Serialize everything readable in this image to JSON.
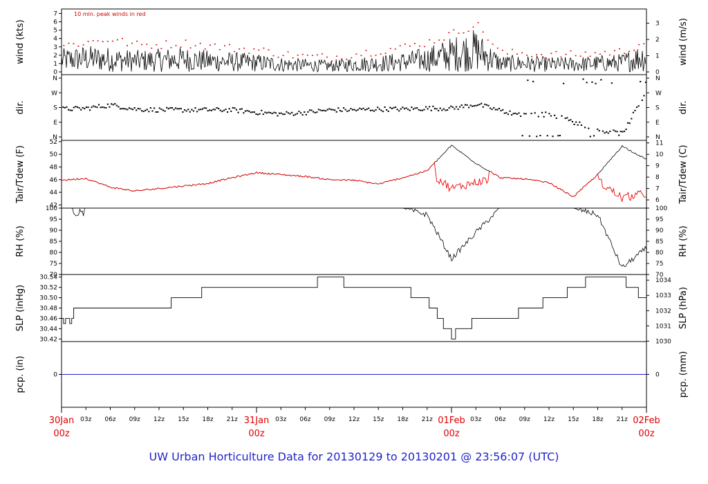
{
  "title": "UW Urban Horticulture Data for 20130129  to  20130201 @ 23:56:07  (UTC)",
  "note": "10 min. peak winds in red",
  "colors": {
    "axis": "#000000",
    "peak": "#dd0000",
    "dew": "#ee0000",
    "precip": "#2222cc",
    "day": "#e00000",
    "title": "#2222cc"
  },
  "x_axis": {
    "hour_ticks": [
      "03z",
      "06z",
      "09z",
      "12z",
      "15z",
      "18z",
      "21z",
      "03z",
      "06z",
      "09z",
      "12z",
      "15z",
      "18z",
      "21z",
      "03z",
      "06z",
      "09z",
      "12z",
      "15z",
      "18z",
      "21z"
    ],
    "day_labels": [
      {
        "day": "30Jan",
        "hour": "00z"
      },
      {
        "day": "31Jan",
        "hour": "00z"
      },
      {
        "day": "01Feb",
        "hour": "00z"
      },
      {
        "day": "02Feb",
        "hour": "00z"
      }
    ]
  },
  "chart_data": [
    {
      "type": "line",
      "panel": "wind",
      "ylabel": "wind (kts)",
      "ylabel_right": "wind (m/s)",
      "ylim": [
        0,
        7.2
      ],
      "yticks": [
        "0",
        "1",
        "2",
        "3",
        "4",
        "5",
        "6",
        "7"
      ],
      "right_ylim": [
        0,
        3.7
      ],
      "right_yticks": [
        "0",
        "1",
        "2",
        "3"
      ],
      "x_hours": [
        0,
        3,
        6,
        9,
        12,
        15,
        18,
        21,
        24,
        27,
        30,
        33,
        36,
        39,
        42,
        45,
        48,
        51,
        54,
        57,
        60,
        63,
        66,
        69,
        72
      ],
      "series": [
        {
          "values": [
            1.4,
            1.6,
            1.5,
            1.3,
            1.4,
            1.5,
            1.3,
            1.2,
            1.1,
            0.9,
            0.8,
            0.7,
            0.9,
            1.0,
            1.2,
            1.5,
            2.1,
            2.6,
            1.0,
            1.0,
            0.9,
            0.9,
            1.0,
            1.1,
            1.9
          ]
        },
        {
          "values": [
            3.2,
            3.6,
            4.0,
            3.3,
            3.3,
            3.5,
            3.2,
            2.9,
            2.7,
            2.2,
            1.9,
            1.8,
            2.2,
            2.6,
            3.0,
            3.6,
            4.6,
            5.8,
            2.3,
            2.3,
            2.1,
            2.1,
            2.3,
            2.5,
            3.8
          ]
        }
      ]
    },
    {
      "type": "scatter",
      "panel": "dir",
      "ylabel": "dir.",
      "ylabel_right": "dir.",
      "yticks": [
        "N",
        "E",
        "S",
        "W",
        "N"
      ],
      "ylim": [
        0,
        360
      ],
      "x_hours": [
        0,
        3,
        6,
        9,
        12,
        15,
        18,
        21,
        24,
        27,
        30,
        33,
        36,
        39,
        42,
        45,
        48,
        51,
        54,
        57,
        60,
        63,
        66,
        69,
        72
      ],
      "values": [
        170,
        175,
        195,
        170,
        165,
        165,
        165,
        165,
        150,
        140,
        150,
        165,
        165,
        170,
        170,
        175,
        175,
        200,
        160,
        130,
        140,
        90,
        40,
        20,
        290
      ]
    },
    {
      "type": "line",
      "panel": "temperature",
      "ylabel": "Tair/Tdew (F)",
      "ylabel_right": "Tair/Tdew (C)",
      "ylim": [
        41.5,
        52.2
      ],
      "yticks": [
        "42",
        "44",
        "46",
        "48",
        "50",
        "52"
      ],
      "right_yticks": [
        "6",
        "7",
        "8",
        "9",
        "10",
        "11"
      ],
      "x_hours": [
        0,
        3,
        6,
        9,
        12,
        15,
        18,
        21,
        24,
        27,
        30,
        33,
        36,
        39,
        42,
        45,
        48,
        51,
        54,
        57,
        60,
        63,
        66,
        69,
        72
      ],
      "series": [
        {
          "values": [
            45.9,
            46.2,
            44.8,
            44.2,
            44.6,
            45.0,
            45.4,
            46.3,
            47.1,
            46.8,
            46.5,
            46.0,
            45.9,
            45.3,
            46.3,
            47.4,
            51.4,
            48.6,
            46.3,
            46.1,
            45.5,
            43.3,
            46.8,
            51.3,
            49.2
          ]
        },
        {
          "values": [
            45.9,
            46.2,
            44.8,
            44.2,
            44.6,
            45.0,
            45.4,
            46.3,
            47.1,
            46.8,
            46.5,
            46.0,
            45.9,
            45.3,
            46.3,
            47.4,
            44.6,
            45.6,
            46.3,
            46.1,
            45.5,
            43.3,
            45.8,
            43.1,
            43.8
          ]
        }
      ]
    },
    {
      "type": "line",
      "panel": "rh",
      "ylabel": "RH (%)",
      "ylabel_right": "RH (%)",
      "ylim": [
        70,
        100
      ],
      "yticks": [
        "70",
        "75",
        "80",
        "85",
        "90",
        "95",
        "100"
      ],
      "x_hours": [
        0,
        3,
        6,
        9,
        12,
        15,
        18,
        21,
        24,
        27,
        30,
        33,
        36,
        39,
        42,
        45,
        48,
        51,
        54,
        57,
        60,
        63,
        66,
        69,
        72
      ],
      "values": [
        100,
        100,
        100,
        100,
        100,
        100,
        100,
        100,
        100,
        100,
        100,
        100,
        100,
        100,
        100,
        97,
        77,
        89,
        100,
        100,
        100,
        100,
        97,
        73,
        82
      ]
    },
    {
      "type": "line",
      "panel": "slp",
      "ylabel": "SLP (inHg)",
      "ylabel_right": "SLP (hPa)",
      "ylim": [
        30.415,
        30.545
      ],
      "yticks": [
        "30.42",
        "30.44",
        "30.46",
        "30.48",
        "30.50",
        "30.52",
        "30.54"
      ],
      "right_yticks": [
        "1030",
        "1031",
        "1032",
        "1033",
        "1034"
      ],
      "x_hours": [
        0,
        3,
        6,
        9,
        12,
        15,
        18,
        21,
        24,
        27,
        30,
        33,
        36,
        39,
        42,
        45,
        48,
        51,
        54,
        57,
        60,
        63,
        66,
        69,
        72
      ],
      "values": [
        30.46,
        30.47,
        30.48,
        30.48,
        30.48,
        30.49,
        30.51,
        30.51,
        30.51,
        30.51,
        30.51,
        30.54,
        30.51,
        30.51,
        30.51,
        30.49,
        30.42,
        30.45,
        30.45,
        30.47,
        30.49,
        30.51,
        30.54,
        30.53,
        30.49
      ]
    },
    {
      "type": "line",
      "panel": "precip",
      "ylabel": "pcp. (in)",
      "ylabel_right": "pcp. (mm)",
      "yticks": [
        "0"
      ],
      "right_yticks": [
        "0"
      ],
      "x_hours": [
        0,
        72
      ],
      "values": [
        0,
        0
      ]
    }
  ]
}
